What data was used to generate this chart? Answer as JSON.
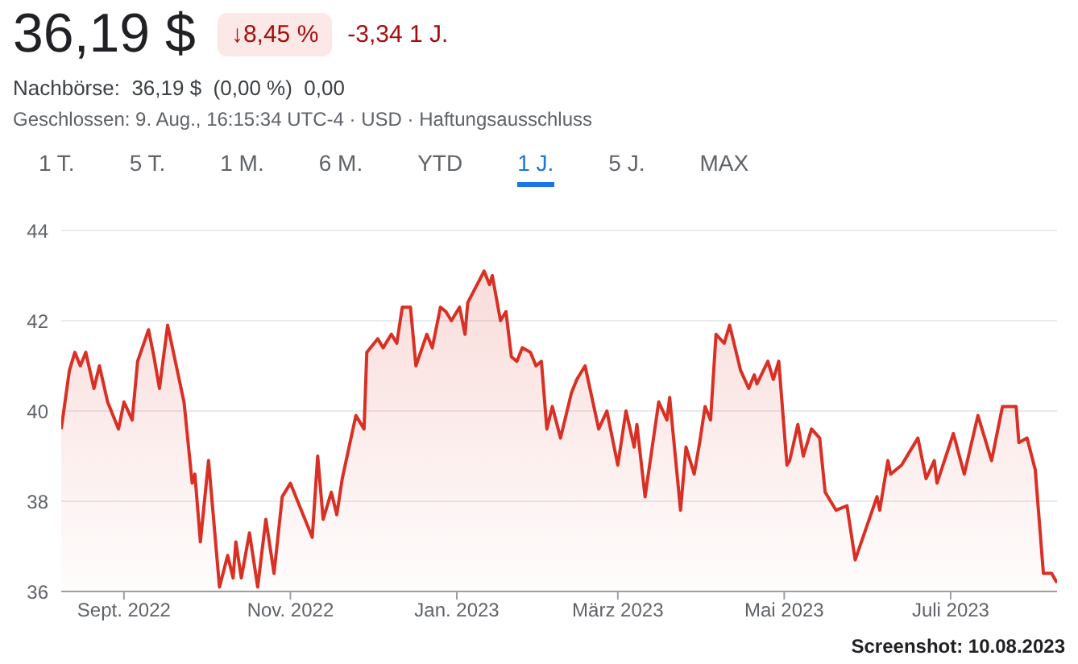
{
  "chart_data": {
    "type": "area",
    "title": "36,19 $",
    "annotations": [
      "↓8,45 %",
      "-3,34 1 J.",
      "Nachbörse:  36,19 $  (0,00 %)  0,00",
      "Geschlossen: 9. Aug., 16:15:34 UTC-4 · USD · Haftungsausschluss",
      "1 T.",
      "5 T.",
      "1 M.",
      "6 M.",
      "YTD",
      "1 J.",
      "5 J.",
      "MAX",
      "Screenshot: 10.08.2023"
    ],
    "x": [
      "2022-08-09",
      "2022-08-12",
      "2022-08-14",
      "2022-08-16",
      "2022-08-18",
      "2022-08-21",
      "2022-08-23",
      "2022-08-26",
      "2022-08-30",
      "2022-09-01",
      "2022-09-04",
      "2022-09-06",
      "2022-09-10",
      "2022-09-12",
      "2022-09-14",
      "2022-09-17",
      "2022-09-23",
      "2022-09-26",
      "2022-09-27",
      "2022-09-29",
      "2022-10-02",
      "2022-10-06",
      "2022-10-09",
      "2022-10-11",
      "2022-10-12",
      "2022-10-14",
      "2022-10-17",
      "2022-10-20",
      "2022-10-23",
      "2022-10-26",
      "2022-10-29",
      "2022-11-01",
      "2022-11-03",
      "2022-11-07",
      "2022-11-09",
      "2022-11-11",
      "2022-11-13",
      "2022-11-16",
      "2022-11-18",
      "2022-11-20",
      "2022-11-25",
      "2022-11-28",
      "2022-11-29",
      "2022-12-03",
      "2022-12-05",
      "2022-12-08",
      "2022-12-10",
      "2022-12-12",
      "2022-12-15",
      "2022-12-17",
      "2022-12-21",
      "2022-12-23",
      "2022-12-26",
      "2022-12-28",
      "2022-12-30",
      "2023-01-02",
      "2023-01-04",
      "2023-01-05",
      "2023-01-11",
      "2023-01-13",
      "2023-01-14",
      "2023-01-17",
      "2023-01-19",
      "2023-01-21",
      "2023-01-23",
      "2023-01-25",
      "2023-01-28",
      "2023-01-30",
      "2023-02-01",
      "2023-02-03",
      "2023-02-05",
      "2023-02-08",
      "2023-02-12",
      "2023-02-14",
      "2023-02-17",
      "2023-02-22",
      "2023-02-25",
      "2023-03-01",
      "2023-03-04",
      "2023-03-07",
      "2023-03-08",
      "2023-03-11",
      "2023-03-16",
      "2023-03-19",
      "2023-03-20",
      "2023-03-24",
      "2023-03-26",
      "2023-03-29",
      "2023-03-31",
      "2023-04-02",
      "2023-04-04",
      "2023-04-06",
      "2023-04-09",
      "2023-04-11",
      "2023-04-15",
      "2023-04-18",
      "2023-04-20",
      "2023-04-21",
      "2023-04-25",
      "2023-04-27",
      "2023-04-29",
      "2023-05-02",
      "2023-05-03",
      "2023-05-06",
      "2023-05-08",
      "2023-05-11",
      "2023-05-14",
      "2023-05-16",
      "2023-05-20",
      "2023-05-24",
      "2023-05-27",
      "2023-05-31",
      "2023-06-04",
      "2023-06-05",
      "2023-06-08",
      "2023-06-09",
      "2023-06-13",
      "2023-06-16",
      "2023-06-19",
      "2023-06-22",
      "2023-06-25",
      "2023-06-26",
      "2023-07-02",
      "2023-07-06",
      "2023-07-11",
      "2023-07-16",
      "2023-07-20",
      "2023-07-25",
      "2023-07-26",
      "2023-07-29",
      "2023-08-01",
      "2023-08-04",
      "2023-08-07",
      "2023-08-09"
    ],
    "series": [
      {
        "color": "#d93025",
        "values": [
          39.6,
          40.9,
          41.3,
          41.0,
          41.3,
          40.5,
          41.0,
          40.2,
          39.6,
          40.2,
          39.8,
          41.1,
          41.8,
          41.2,
          40.5,
          41.9,
          40.2,
          38.4,
          38.6,
          37.1,
          38.9,
          36.1,
          36.8,
          36.3,
          37.1,
          36.3,
          37.3,
          36.1,
          37.6,
          36.4,
          38.1,
          38.4,
          38.1,
          37.5,
          37.2,
          39.0,
          37.6,
          38.2,
          37.7,
          38.5,
          39.9,
          39.6,
          41.3,
          41.6,
          41.4,
          41.7,
          41.5,
          42.3,
          42.3,
          41.0,
          41.7,
          41.4,
          42.3,
          42.2,
          42.0,
          42.3,
          41.7,
          42.4,
          43.1,
          42.8,
          43.0,
          42.0,
          42.2,
          41.2,
          41.1,
          41.4,
          41.3,
          41.0,
          41.1,
          39.6,
          40.1,
          39.4,
          40.4,
          40.7,
          41.0,
          39.6,
          40.0,
          38.8,
          40.0,
          39.2,
          39.7,
          38.1,
          40.2,
          39.8,
          40.3,
          37.8,
          39.2,
          38.6,
          39.3,
          40.1,
          39.8,
          41.7,
          41.5,
          41.9,
          40.9,
          40.5,
          40.8,
          40.6,
          41.1,
          40.7,
          41.1,
          38.8,
          38.9,
          39.7,
          39.0,
          39.6,
          39.4,
          38.2,
          37.8,
          37.9,
          36.7,
          37.4,
          38.1,
          37.8,
          38.9,
          38.6,
          38.8,
          39.1,
          39.4,
          38.5,
          38.9,
          38.4,
          39.5,
          38.6,
          39.9,
          38.9,
          40.1,
          40.1,
          39.3,
          39.4,
          38.7,
          36.4,
          36.4,
          36.19
        ]
      }
    ],
    "xlim": [
      "2022-08-09",
      "2023-08-09"
    ],
    "xticks": [
      {
        "value": "2022-09-01",
        "label": "Sept. 2022"
      },
      {
        "value": "2022-11-01",
        "label": "Nov. 2022"
      },
      {
        "value": "2023-01-01",
        "label": "Jan. 2023"
      },
      {
        "value": "2023-03-01",
        "label": "März 2023"
      },
      {
        "value": "2023-05-01",
        "label": "Mai 2023"
      },
      {
        "value": "2023-07-01",
        "label": "Juli 2023"
      }
    ],
    "ylim": [
      36,
      44
    ],
    "yticks": [
      36,
      38,
      40,
      42,
      44
    ],
    "grid": "y"
  }
}
